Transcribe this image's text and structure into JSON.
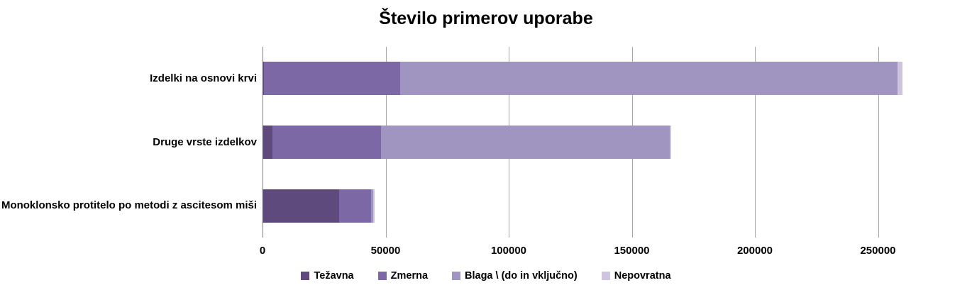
{
  "title": "Število primerov uporabe",
  "chart_data": {
    "type": "bar",
    "orientation": "horizontal",
    "stacked": true,
    "title": "Število primerov uporabe",
    "categories": [
      "Izdelki na osnovi krvi",
      "Druge vrste izdelkov",
      "Monoklonsko protitelo po metodi z ascitesom miši"
    ],
    "series": [
      {
        "name": "Težavna",
        "color": "#5f4a7d",
        "values": [
          500,
          4000,
          31000
        ]
      },
      {
        "name": "Zmerna",
        "color": "#7c68a4",
        "values": [
          55500,
          44000,
          13000
        ]
      },
      {
        "name": "Blaga \\ (do in vključno)",
        "color": "#a094c1",
        "values": [
          202000,
          117500,
          1000
        ]
      },
      {
        "name": "Nepovratna",
        "color": "#cdc5dd",
        "values": [
          2000,
          500,
          500
        ]
      }
    ],
    "category_totals": [
      260000,
      166000,
      45500
    ],
    "x_ticks": [
      0,
      50000,
      100000,
      150000,
      200000,
      250000
    ],
    "x_tick_labels": [
      "0",
      "50000",
      "100000",
      "150000",
      "200000",
      "250000"
    ],
    "xlim": [
      0,
      270000
    ],
    "grid": true,
    "legend_position": "bottom",
    "legend_labels": [
      "Težavna",
      "Zmerna",
      "Blaga \\ (do in vključno)",
      "Nepovratna"
    ]
  },
  "colors": {
    "gridline": "#a6a6a6",
    "axis": "#808080",
    "text": "#000000",
    "background": "#ffffff"
  }
}
